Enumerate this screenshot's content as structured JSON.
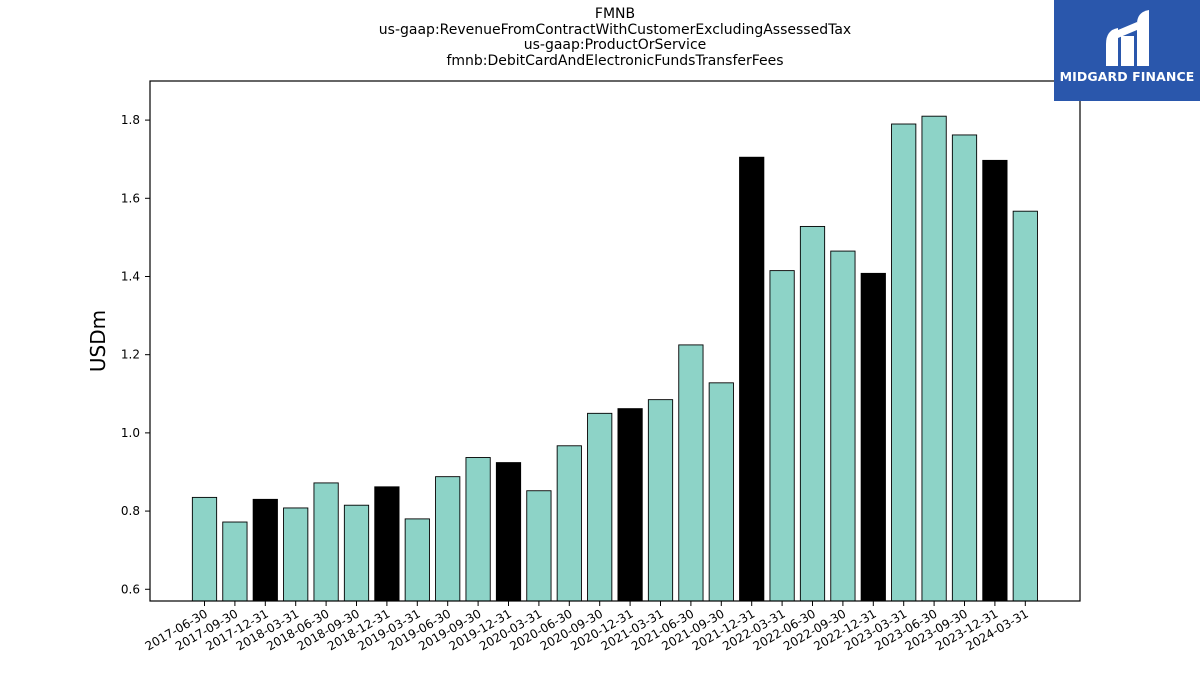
{
  "logo": {
    "text": "MIDGARD FINANCE"
  },
  "chart_data": {
    "type": "bar",
    "title_lines": [
      "FMNB",
      "us-gaap:RevenueFromContractWithCustomerExcludingAssessedTax",
      "us-gaap:ProductOrService",
      "fmnb:DebitCardAndElectronicFundsTransferFees"
    ],
    "xlabel": "",
    "ylabel": "USDm",
    "ylim": [
      0.57,
      1.9
    ],
    "yticks": [
      0.6,
      0.8,
      1.0,
      1.2,
      1.4,
      1.6,
      1.8
    ],
    "grid": false,
    "colors": {
      "regular": "#8dd3c7",
      "year_end": "#000000",
      "edge": "#000000"
    },
    "categories": [
      "2017-06-30",
      "2017-09-30",
      "2017-12-31",
      "2018-03-31",
      "2018-06-30",
      "2018-09-30",
      "2018-12-31",
      "2019-03-31",
      "2019-06-30",
      "2019-09-30",
      "2019-12-31",
      "2020-03-31",
      "2020-06-30",
      "2020-09-30",
      "2020-12-31",
      "2021-03-31",
      "2021-06-30",
      "2021-09-30",
      "2021-12-31",
      "2022-03-31",
      "2022-06-30",
      "2022-09-30",
      "2022-12-31",
      "2023-03-31",
      "2023-06-30",
      "2023-09-30",
      "2023-12-31",
      "2024-03-31"
    ],
    "values": [
      0.835,
      0.772,
      0.83,
      0.808,
      0.872,
      0.815,
      0.862,
      0.78,
      0.888,
      0.937,
      0.924,
      0.852,
      0.967,
      1.05,
      1.062,
      1.085,
      1.225,
      1.128,
      1.705,
      1.415,
      1.528,
      1.465,
      1.408,
      1.79,
      1.81,
      1.762,
      1.697,
      1.567
    ]
  }
}
